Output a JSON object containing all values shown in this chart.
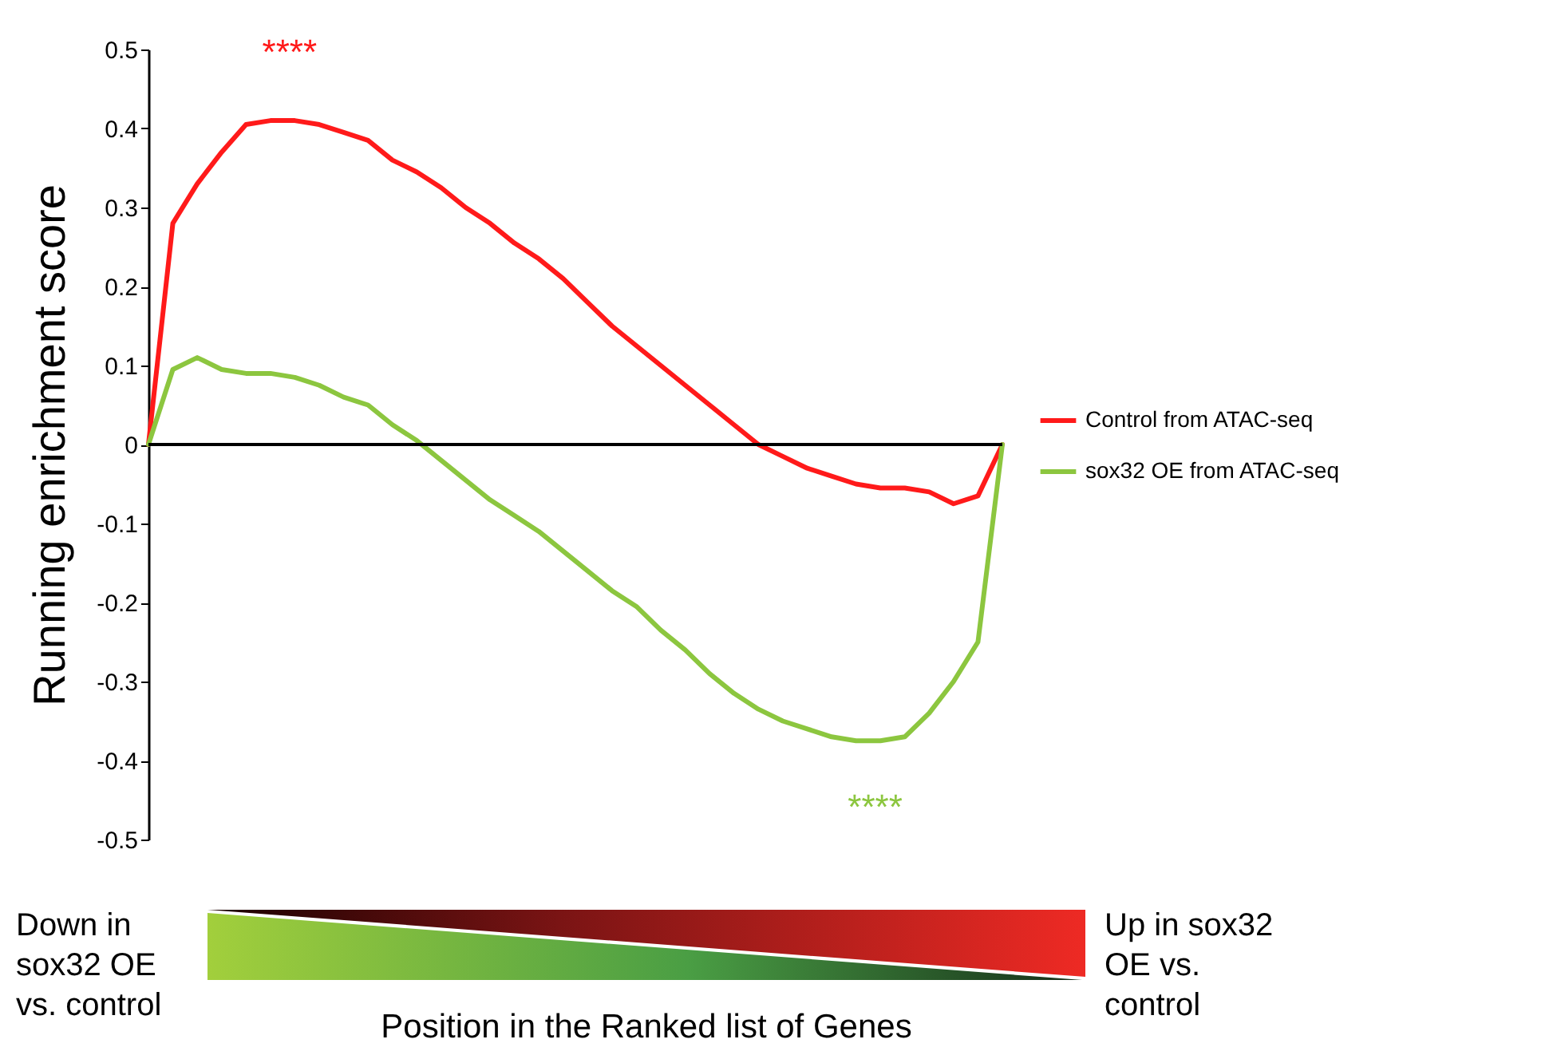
{
  "chart_data": {
    "type": "line",
    "ylabel": "Running enrichment score",
    "xlabel": "Position in the Ranked list of Genes",
    "categories": [
      null,
      null,
      null,
      null,
      null,
      null,
      null,
      null,
      null,
      null,
      null,
      null,
      null,
      null,
      null,
      null,
      null,
      null,
      null,
      null,
      null,
      null,
      null,
      null,
      null,
      null,
      null,
      null,
      null,
      null,
      null,
      null,
      null,
      null,
      null,
      null
    ],
    "series": [
      {
        "name": "Control from ATAC-seq",
        "color": "#ff1a1a",
        "values": [
          0,
          0.28,
          0.33,
          0.37,
          0.405,
          0.41,
          0.41,
          0.405,
          0.395,
          0.385,
          0.36,
          0.345,
          0.325,
          0.3,
          0.28,
          0.255,
          0.235,
          0.21,
          0.18,
          0.15,
          0.125,
          0.1,
          0.075,
          0.05,
          0.025,
          0,
          -0.015,
          -0.03,
          -0.04,
          -0.05,
          -0.055,
          -0.055,
          -0.06,
          -0.075,
          -0.065,
          0
        ]
      },
      {
        "name": "sox32 OE from ATAC-seq",
        "color": "#8cc63f",
        "values": [
          0,
          0.095,
          0.11,
          0.095,
          0.09,
          0.09,
          0.085,
          0.075,
          0.06,
          0.05,
          0.025,
          0.005,
          -0.02,
          -0.045,
          -0.07,
          -0.09,
          -0.11,
          -0.135,
          -0.16,
          -0.185,
          -0.205,
          -0.235,
          -0.26,
          -0.29,
          -0.315,
          -0.335,
          -0.35,
          -0.36,
          -0.37,
          -0.375,
          -0.375,
          -0.37,
          -0.34,
          -0.3,
          -0.25,
          0
        ]
      }
    ],
    "ylim": [
      -0.5,
      0.5
    ],
    "yticks": [
      -0.5,
      -0.4,
      -0.3,
      -0.2,
      -0.1,
      0,
      0.1,
      0.2,
      0.3,
      0.4,
      0.5
    ],
    "ref_lines": [
      {
        "axis": "y",
        "value": 0,
        "color": "#000000"
      }
    ],
    "annotations": [
      "****",
      "****",
      "Down in sox32 OE vs. control",
      "Up in sox32 OE vs. control"
    ],
    "legend": "right",
    "tick_labels": "y",
    "grid": false,
    "marker": "none",
    "line_style": "solid"
  }
}
